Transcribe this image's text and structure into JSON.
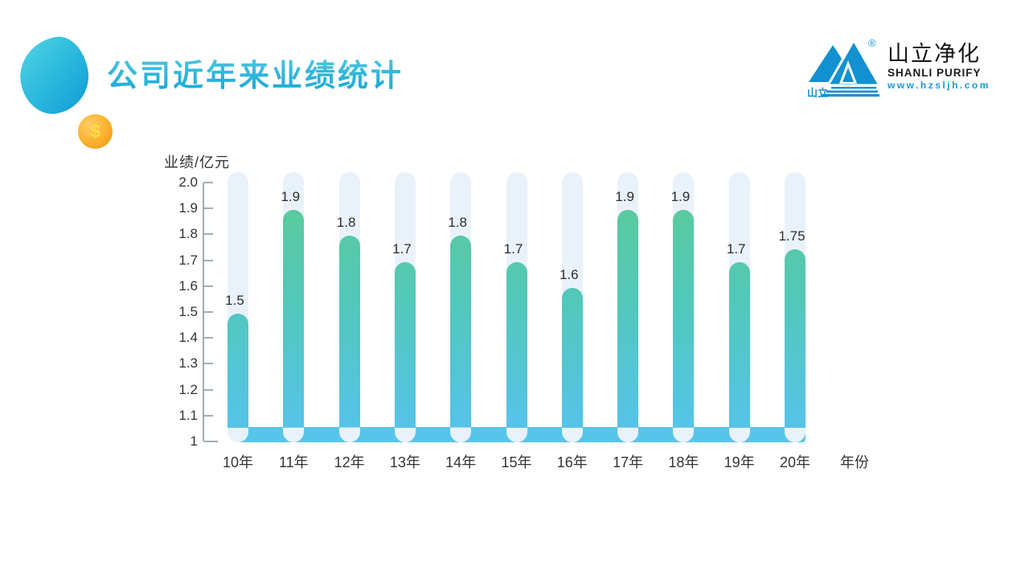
{
  "slide": {
    "title": "公司近年来业绩统计",
    "coin_symbol": "$"
  },
  "logo": {
    "mark_caption": "山立",
    "registered": "®",
    "name_cn": "山立净化",
    "name_en": "SHANLI PURIFY",
    "url": "www.hzsljh.com"
  },
  "chart_data": {
    "type": "bar",
    "title": "公司近年来业绩统计",
    "xlabel": "年份",
    "ylabel": "业绩/亿元",
    "categories": [
      "10年",
      "11年",
      "12年",
      "13年",
      "14年",
      "15年",
      "16年",
      "17年",
      "18年",
      "19年",
      "20年"
    ],
    "values": [
      1.5,
      1.9,
      1.8,
      1.7,
      1.8,
      1.7,
      1.6,
      1.9,
      1.9,
      1.7,
      1.75
    ],
    "value_labels": [
      "1.5",
      "1.9",
      "1.8",
      "1.7",
      "1.8",
      "1.7",
      "1.6",
      "1.9",
      "1.9",
      "1.7",
      "1.75"
    ],
    "ylim": [
      1,
      2
    ],
    "y_tick_labels": [
      "2.0",
      "1.9",
      "1.8",
      "1.7",
      "1.6",
      "1.5",
      "1.4",
      "1.3",
      "1.2",
      "1.1",
      "1"
    ],
    "grid": false,
    "legend": false,
    "colors": {
      "bar_gradient_top": "#5fcb8e",
      "bar_gradient_mid": "#52c8b9",
      "bar_gradient_bottom": "#56c3e9",
      "track": "#e9f2fb",
      "baseline_strip": "#57c5e9",
      "axis": "#9fadb6",
      "label_text": "#333333",
      "accent_title": "#24b2d9",
      "logo_blue": "#1291d1",
      "coin_orange": "#fbaf2e"
    }
  }
}
